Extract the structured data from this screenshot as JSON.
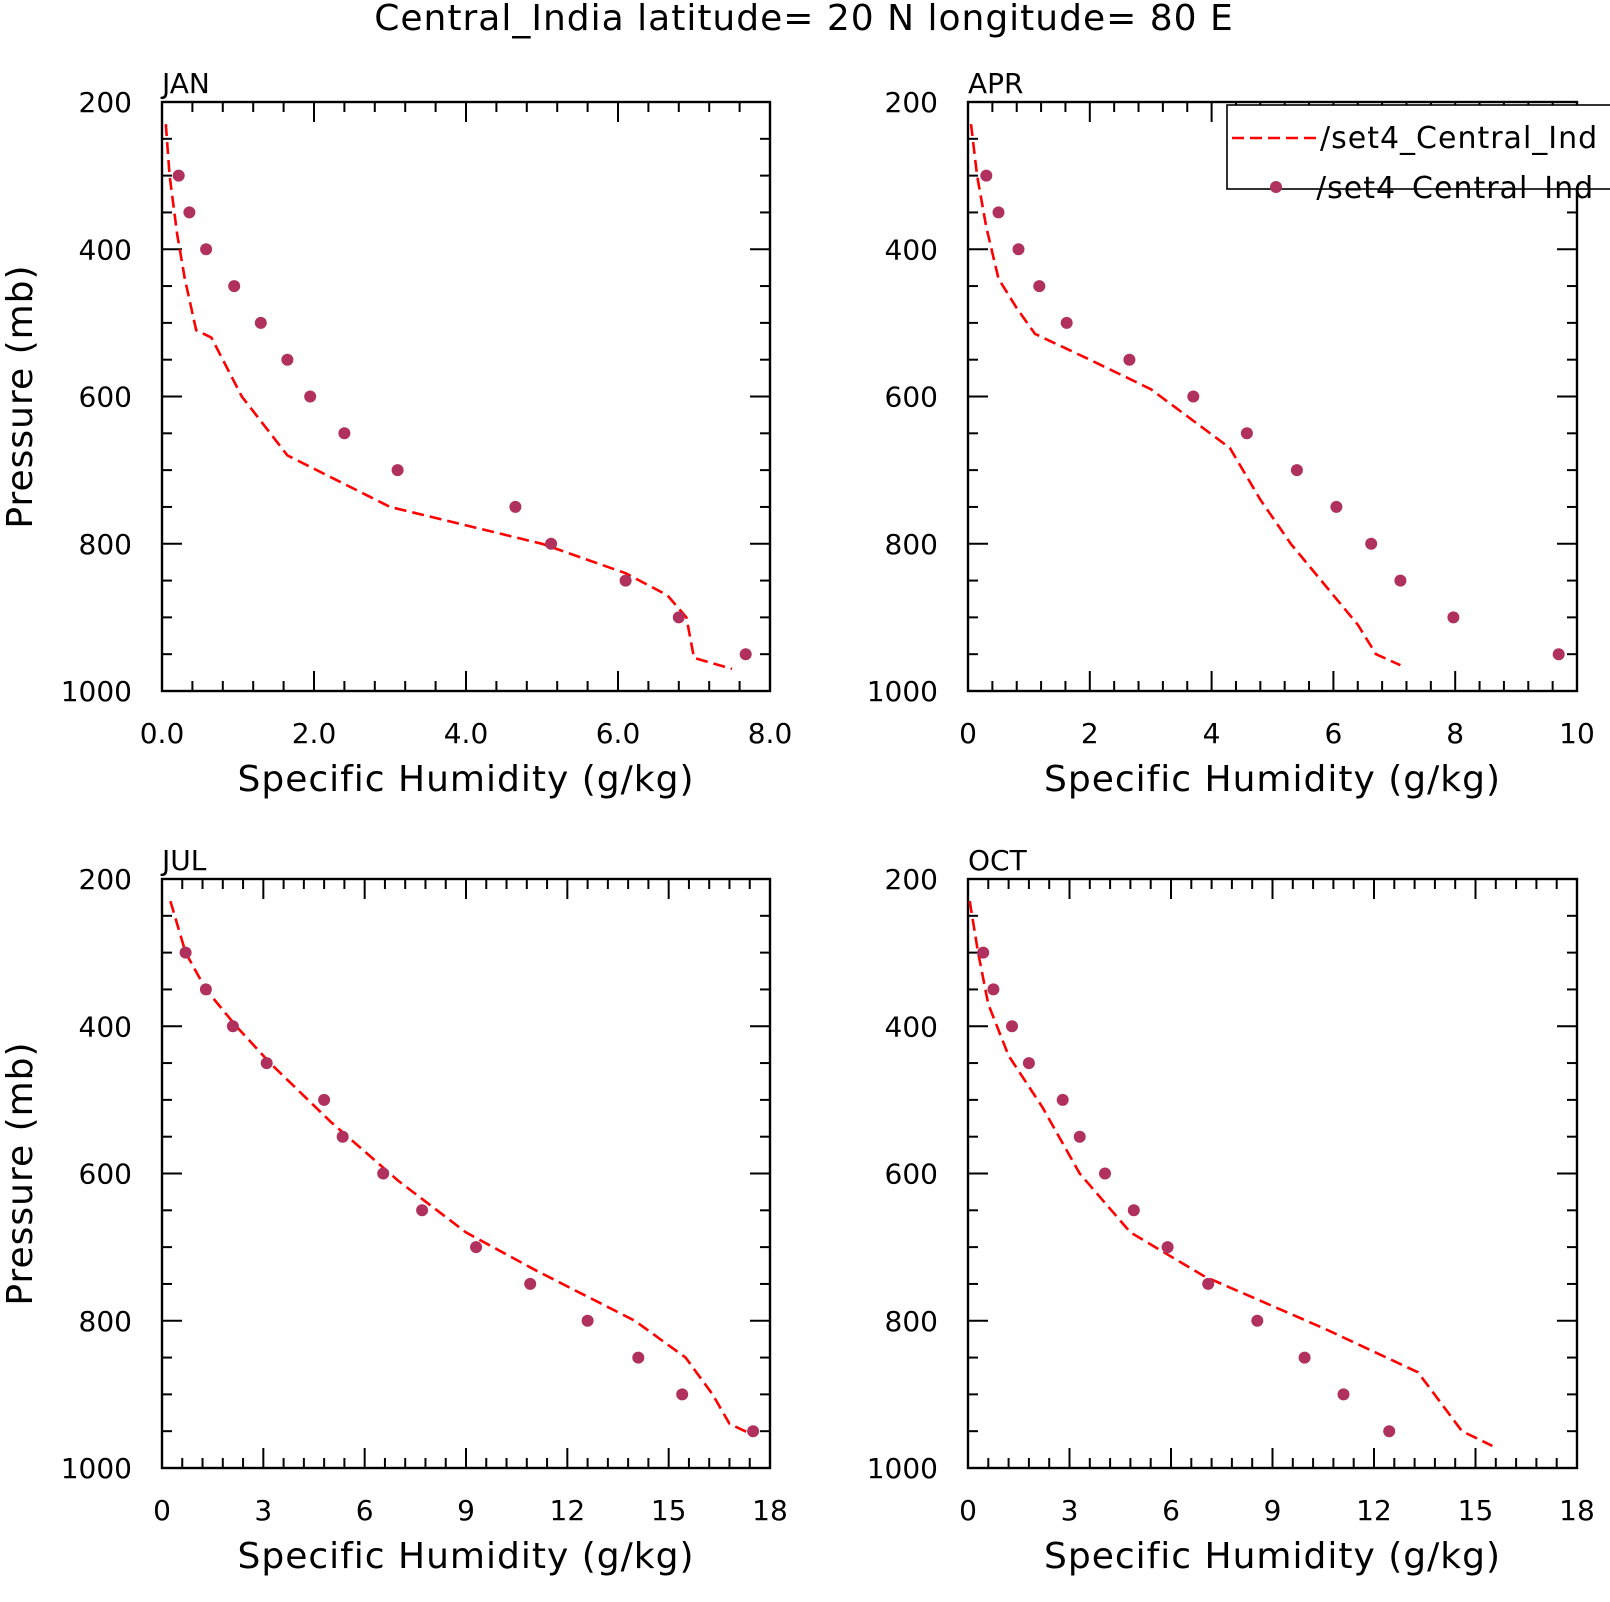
{
  "figure": {
    "title": "Central_India  latitude= 20 N longitude= 80 E"
  },
  "legend": {
    "entries": [
      {
        "label": "/set4_Central_Ind",
        "style": "dashed",
        "color": "#ff0000"
      },
      {
        "label": "/set4_Central_Ind",
        "style": "dots",
        "color": "#b0305e"
      }
    ]
  },
  "colors": {
    "line": "#ff0000",
    "dots": "#b0305e",
    "axes": "#000000"
  },
  "chart_data": [
    {
      "type": "line",
      "title": "JAN",
      "xlabel": "Specific Humidity (g/kg)",
      "ylabel": "Pressure (mb)",
      "xlim": [
        0,
        8
      ],
      "ylim": [
        1000,
        200
      ],
      "y_reversed": true,
      "xticks": [
        "0.0",
        "2.0",
        "4.0",
        "6.0",
        "8.0"
      ],
      "xtick_values": [
        0,
        2,
        4,
        6,
        8
      ],
      "yticks": [
        "200",
        "400",
        "600",
        "800",
        "1000"
      ],
      "ytick_values": [
        200,
        400,
        600,
        800,
        1000
      ],
      "series": [
        {
          "style": "dashed",
          "x": [
            0.05,
            0.1,
            0.2,
            0.3,
            0.45,
            0.65,
            1.05,
            1.65,
            3.0,
            5.0,
            6.1,
            6.65,
            6.9,
            7.0,
            7.5
          ],
          "y": [
            230,
            300,
            380,
            440,
            510,
            520,
            600,
            680,
            750,
            800,
            840,
            870,
            900,
            955,
            970
          ]
        },
        {
          "style": "dots",
          "x": [
            0.22,
            0.36,
            0.58,
            0.95,
            1.3,
            1.65,
            1.95,
            2.4,
            3.1,
            4.65,
            5.12,
            6.1,
            6.8,
            7.68
          ],
          "y": [
            300,
            350,
            400,
            450,
            500,
            550,
            600,
            650,
            700,
            750,
            800,
            850,
            900,
            950
          ]
        }
      ]
    },
    {
      "type": "line",
      "title": "APR",
      "xlabel": "Specific Humidity (g/kg)",
      "ylabel": "",
      "xlim": [
        0,
        10
      ],
      "ylim": [
        1000,
        200
      ],
      "y_reversed": true,
      "xticks": [
        "0",
        "2",
        "4",
        "6",
        "8",
        "10"
      ],
      "xtick_values": [
        0,
        2,
        4,
        6,
        8,
        10
      ],
      "yticks": [
        "200",
        "400",
        "600",
        "800",
        "1000"
      ],
      "ytick_values": [
        200,
        400,
        600,
        800,
        1000
      ],
      "series": [
        {
          "style": "dashed",
          "x": [
            0.05,
            0.15,
            0.3,
            0.5,
            0.8,
            1.1,
            2.0,
            3.0,
            4.3,
            4.8,
            5.3,
            6.0,
            6.4,
            6.7,
            7.1
          ],
          "y": [
            230,
            300,
            370,
            440,
            480,
            515,
            550,
            590,
            670,
            740,
            800,
            870,
            910,
            950,
            965
          ]
        },
        {
          "style": "dots",
          "x": [
            0.3,
            0.5,
            0.83,
            1.17,
            1.62,
            2.65,
            3.7,
            4.58,
            5.4,
            6.05,
            6.62,
            7.1,
            7.97,
            9.7
          ],
          "y": [
            300,
            350,
            400,
            450,
            500,
            550,
            600,
            650,
            700,
            750,
            800,
            850,
            900,
            950
          ]
        }
      ]
    },
    {
      "type": "line",
      "title": "JUL",
      "xlabel": "Specific Humidity (g/kg)",
      "ylabel": "Pressure (mb)",
      "xlim": [
        0,
        18
      ],
      "ylim": [
        1000,
        200
      ],
      "y_reversed": true,
      "xticks": [
        "0",
        "3",
        "6",
        "9",
        "12",
        "15",
        "18"
      ],
      "xtick_values": [
        0,
        3,
        6,
        9,
        12,
        15,
        18
      ],
      "yticks": [
        "200",
        "400",
        "600",
        "800",
        "1000"
      ],
      "ytick_values": [
        200,
        400,
        600,
        800,
        1000
      ],
      "series": [
        {
          "style": "dashed",
          "x": [
            0.25,
            0.7,
            1.3,
            2.2,
            3.2,
            5.0,
            7.0,
            9.0,
            11.0,
            14.0,
            15.5,
            16.3,
            16.8,
            17.5
          ],
          "y": [
            230,
            300,
            350,
            400,
            450,
            530,
            610,
            680,
            730,
            800,
            850,
            900,
            940,
            955
          ]
        },
        {
          "style": "dots",
          "x": [
            0.7,
            1.3,
            2.1,
            3.1,
            4.8,
            5.35,
            6.55,
            7.7,
            9.3,
            10.9,
            12.6,
            14.1,
            15.4,
            17.5
          ],
          "y": [
            300,
            350,
            400,
            450,
            500,
            550,
            600,
            650,
            700,
            750,
            800,
            850,
            900,
            950
          ]
        }
      ]
    },
    {
      "type": "line",
      "title": "OCT",
      "xlabel": "Specific Humidity (g/kg)",
      "ylabel": "",
      "xlim": [
        0,
        18
      ],
      "ylim": [
        1000,
        200
      ],
      "y_reversed": true,
      "xticks": [
        "0",
        "3",
        "6",
        "9",
        "12",
        "15",
        "18"
      ],
      "xtick_values": [
        0,
        3,
        6,
        9,
        12,
        15,
        18
      ],
      "yticks": [
        "200",
        "400",
        "600",
        "800",
        "1000"
      ],
      "ytick_values": [
        200,
        400,
        600,
        800,
        1000
      ],
      "series": [
        {
          "style": "dashed",
          "x": [
            0.05,
            0.3,
            0.6,
            1.2,
            2.2,
            3.3,
            4.8,
            7.0,
            10.5,
            13.3,
            14.6,
            15.5
          ],
          "y": [
            230,
            300,
            370,
            440,
            510,
            600,
            680,
            740,
            810,
            870,
            950,
            970
          ]
        },
        {
          "style": "dots",
          "x": [
            0.45,
            0.75,
            1.3,
            1.8,
            2.8,
            3.3,
            4.05,
            4.9,
            5.9,
            7.1,
            8.55,
            9.95,
            11.1,
            12.45
          ],
          "y": [
            300,
            350,
            400,
            450,
            500,
            550,
            600,
            650,
            700,
            750,
            800,
            850,
            900,
            950
          ]
        }
      ]
    }
  ]
}
